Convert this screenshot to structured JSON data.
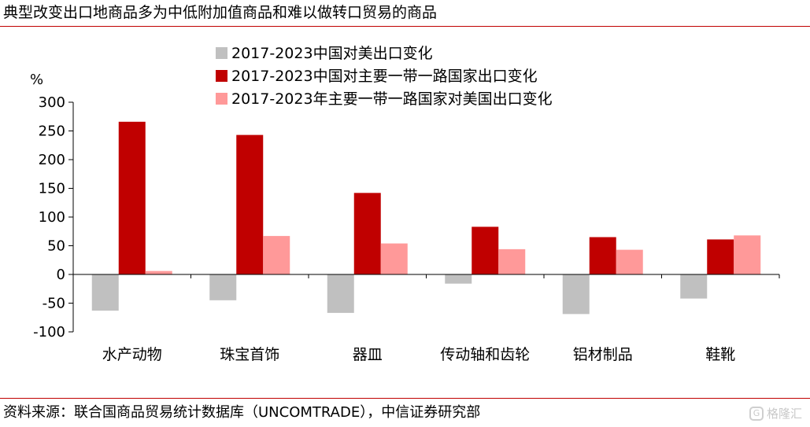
{
  "title": "典型改变出口地商品多为中低附加值商品和难以做转口贸易的商品",
  "source": "资料来源：联合国商品贸易统计数据库（UNCOMTRADE），中信证券研究部",
  "watermark": {
    "text": "格隆汇",
    "icon": "watermark-logo-icon"
  },
  "chart_data": {
    "type": "bar",
    "ylabel": "%",
    "ylim": [
      -100,
      300
    ],
    "yticks": [
      300,
      250,
      200,
      150,
      100,
      50,
      0,
      -50,
      -100
    ],
    "grid": false,
    "legend_position": "top",
    "categories": [
      "水产动物",
      "珠宝首饰",
      "器皿",
      "传动轴和齿轮",
      "铝材制品",
      "鞋靴"
    ],
    "series": [
      {
        "name": "2017-2023中国对美出口变化",
        "color": "#c0c0c0",
        "values": [
          -63,
          -45,
          -67,
          -16,
          -69,
          -42
        ]
      },
      {
        "name": "2017-2023中国对主要一带一路国家出口变化",
        "color": "#c00000",
        "values": [
          266,
          243,
          142,
          83,
          65,
          61
        ]
      },
      {
        "name": "2017-2023年主要一带一路国家对美国出口变化",
        "color": "#ff9999",
        "values": [
          6,
          67,
          54,
          44,
          43,
          68
        ]
      }
    ]
  }
}
